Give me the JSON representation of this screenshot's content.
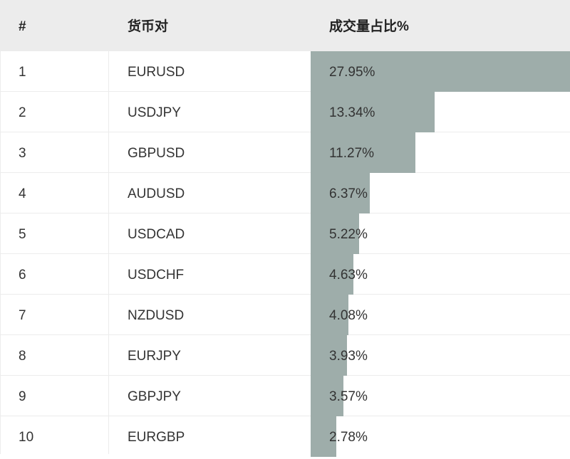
{
  "table": {
    "headers": {
      "rank": "#",
      "pair": "货币对",
      "share": "成交量占比%"
    },
    "rows": [
      {
        "rank": "1",
        "pair": "EURUSD",
        "share_label": "27.95%",
        "share": 27.95
      },
      {
        "rank": "2",
        "pair": "USDJPY",
        "share_label": "13.34%",
        "share": 13.34
      },
      {
        "rank": "3",
        "pair": "GBPUSD",
        "share_label": "11.27%",
        "share": 11.27
      },
      {
        "rank": "4",
        "pair": "AUDUSD",
        "share_label": "6.37%",
        "share": 6.37
      },
      {
        "rank": "5",
        "pair": "USDCAD",
        "share_label": "5.22%",
        "share": 5.22
      },
      {
        "rank": "6",
        "pair": "USDCHF",
        "share_label": "4.63%",
        "share": 4.63
      },
      {
        "rank": "7",
        "pair": "NZDUSD",
        "share_label": "4.08%",
        "share": 4.08
      },
      {
        "rank": "8",
        "pair": "EURJPY",
        "share_label": "3.93%",
        "share": 3.93
      },
      {
        "rank": "9",
        "pair": "GBPJPY",
        "share_label": "3.57%",
        "share": 3.57
      },
      {
        "rank": "10",
        "pair": "EURGBP",
        "share_label": "2.78%",
        "share": 2.78
      }
    ]
  },
  "colors": {
    "bar": "#9eadaa",
    "header_bg": "#ececec"
  }
}
